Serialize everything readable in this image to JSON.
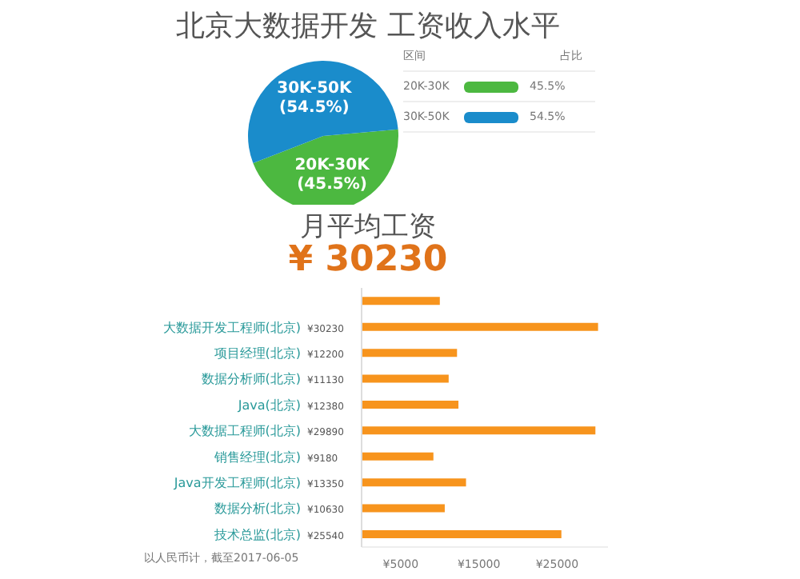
{
  "chart_data": [
    {
      "type": "pie",
      "title": "北京大数据开发 工资收入水平",
      "categories": [
        "20K-30K",
        "30K-50K"
      ],
      "values": [
        45.5,
        54.5
      ],
      "colors": [
        "#4cb840",
        "#1a8ccb"
      ],
      "value_labels": [
        "(45.5%)",
        "(54.5%)"
      ],
      "legend": "right",
      "annotations": [
        "区间",
        "占比",
        "45.5%",
        "54.5%"
      ]
    },
    {
      "type": "bar",
      "orientation": "horizontal",
      "title": "月平均工资",
      "subtitle": "¥ 30230",
      "categories": [
        null,
        "大数据开发工程师(北京)",
        "项目经理(北京)",
        "数据分析师(北京)",
        "Java(北京)",
        "大数据工程师(北京)",
        "销售经理(北京)",
        "Java开发工程师(北京)",
        "数据分析(北京)",
        "技术总监(北京)"
      ],
      "values": [
        10000,
        30230,
        12200,
        11130,
        12380,
        29890,
        9180,
        13350,
        10630,
        25540
      ],
      "value_labels": [
        null,
        "¥30230",
        "¥12200",
        "¥11130",
        "¥12380",
        "¥29890",
        "¥9180",
        "¥13350",
        "¥10630",
        "¥25540"
      ],
      "color": "#f7941d",
      "xlim": [
        0,
        31500
      ],
      "xticks": [
        {
          "value": 5000,
          "label": "¥5000"
        },
        {
          "value": 15000,
          "label": "¥15000"
        },
        {
          "value": 25000,
          "label": "¥25000"
        }
      ],
      "annotations": [
        "以人民币计，截至2017-06-05"
      ]
    }
  ]
}
